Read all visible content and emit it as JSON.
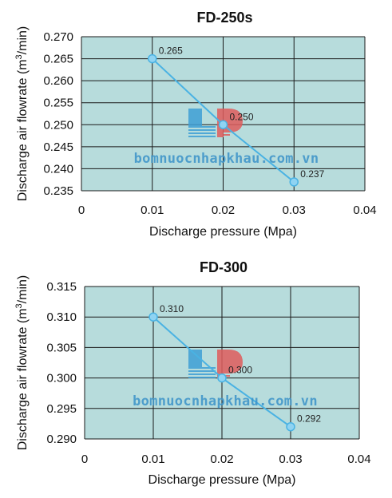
{
  "colors": {
    "plot_bg": "#b7dcdc",
    "grid": "#1a1a1a",
    "series_line": "#49b2e3",
    "marker_fill": "#8fd3f2",
    "watermark_text": "#3b93c9",
    "logo_blue": "#3f9fd6",
    "logo_red": "#df5c5c"
  },
  "watermark": {
    "text": "bomnuocnhapkhau.com.vn"
  },
  "chart_data": [
    {
      "type": "line",
      "title": "FD-250s",
      "xlabel": "Discharge pressure (Mpa)",
      "ylabel": "Discharge air flowrate (m3/min)",
      "ylabel_parts": [
        "Discharge air flowrate (m",
        "3",
        "/min)"
      ],
      "xlim": [
        0,
        0.04
      ],
      "ylim": [
        0.235,
        0.27
      ],
      "xticks": [
        "0",
        "0.01",
        "0.02",
        "0.03",
        "0.04"
      ],
      "yticks": [
        "0.235",
        "0.240",
        "0.245",
        "0.250",
        "0.255",
        "0.260",
        "0.265",
        "0.270"
      ],
      "grid": true,
      "x": [
        0.01,
        0.02,
        0.03
      ],
      "y": [
        0.265,
        0.25,
        0.237
      ],
      "data_labels": [
        "0.265",
        "0.250",
        "0.237"
      ]
    },
    {
      "type": "line",
      "title": "FD-300",
      "xlabel": "Discharge pressure (Mpa)",
      "ylabel": "Discharge air flowrate (m3/min)",
      "ylabel_parts": [
        "Discharge air flowrate (m",
        "3",
        "/min)"
      ],
      "xlim": [
        0,
        0.04
      ],
      "ylim": [
        0.29,
        0.315
      ],
      "xticks": [
        "0",
        "0.01",
        "0.02",
        "0.03",
        "0.04"
      ],
      "yticks": [
        "0.290",
        "0.295",
        "0.300",
        "0.305",
        "0.310",
        "0.315"
      ],
      "grid": true,
      "x": [
        0.01,
        0.02,
        0.03
      ],
      "y": [
        0.31,
        0.3,
        0.292
      ],
      "data_labels": [
        "0.310",
        "0.300",
        "0.292"
      ]
    }
  ]
}
